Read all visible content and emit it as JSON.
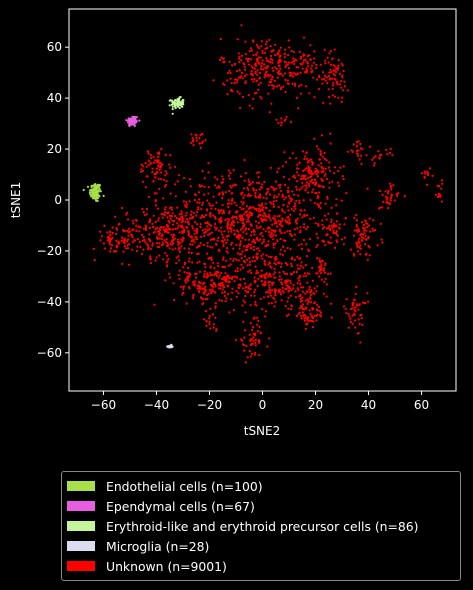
{
  "chart_data": {
    "type": "scatter",
    "title": "",
    "xlabel": "tSNE2",
    "ylabel": "tSNE1",
    "xlim": [
      -73,
      73
    ],
    "ylim": [
      -75,
      75
    ],
    "x_ticks": [
      -60,
      -40,
      -20,
      0,
      20,
      40,
      60
    ],
    "y_ticks": [
      -60,
      -40,
      -20,
      0,
      20,
      40,
      60
    ],
    "grid": false,
    "legend_position": "below",
    "background": "#000000",
    "series": [
      {
        "name": "Endothelial cells (n=100)",
        "color": "#a8e04a",
        "n": 100,
        "clusters": [
          [
            -63,
            3,
            2.0,
            3.5
          ]
        ]
      },
      {
        "name": "Ependymal cells (n=67)",
        "color": "#e85ee0",
        "n": 67,
        "clusters": [
          [
            -49,
            31,
            2.0,
            2.0
          ]
        ]
      },
      {
        "name": "Erythroid-like and erythroid precursor cells (n=86)",
        "color": "#c4f59a",
        "n": 86,
        "clusters": [
          [
            -32,
            38,
            2.2,
            1.8
          ]
        ]
      },
      {
        "name": "Microglia (n=28)",
        "color": "#dcdcf0",
        "n": 28,
        "clusters": [
          [
            -35,
            -57.5,
            0.8,
            0.5
          ]
        ]
      },
      {
        "name": "Unknown (n=9001)",
        "color": "#ff0000",
        "n": 9001,
        "clusters": [
          [
            -5,
            -8,
            27,
            17
          ],
          [
            -35,
            -12,
            16,
            10
          ],
          [
            -55,
            -16,
            8,
            5
          ],
          [
            -18,
            -32,
            14,
            9
          ],
          [
            5,
            -32,
            13,
            10
          ],
          [
            2,
            52,
            16,
            11
          ],
          [
            27,
            48,
            5,
            8
          ],
          [
            18,
            53,
            4,
            4
          ],
          [
            8,
            31,
            3,
            2
          ],
          [
            -40,
            13,
            6,
            7
          ],
          [
            -24,
            24,
            3,
            4
          ],
          [
            19,
            10,
            9,
            10
          ],
          [
            36,
            20,
            3,
            3
          ],
          [
            44,
            17,
            4,
            3
          ],
          [
            47,
            1,
            4,
            5
          ],
          [
            62,
            10,
            2.5,
            3
          ],
          [
            67,
            3,
            2,
            4
          ],
          [
            26,
            -12,
            4,
            6
          ],
          [
            38,
            -14,
            6,
            7
          ],
          [
            22,
            -27,
            3,
            6
          ],
          [
            18,
            -43,
            6,
            8
          ],
          [
            35,
            -44,
            4,
            7
          ],
          [
            -4,
            -55,
            5,
            6
          ],
          [
            -20,
            -48,
            3,
            3
          ],
          [
            -22,
            -36,
            3,
            3
          ]
        ]
      }
    ]
  },
  "legend": {
    "items": [
      {
        "label": "Endothelial cells (n=100)",
        "color": "#a8e04a"
      },
      {
        "label": "Ependymal cells (n=67)",
        "color": "#e85ee0"
      },
      {
        "label": "Erythroid-like and erythroid precursor cells (n=86)",
        "color": "#c4f59a"
      },
      {
        "label": "Microglia (n=28)",
        "color": "#dcdcf0"
      },
      {
        "label": "Unknown (n=9001)",
        "color": "#ff0000"
      }
    ]
  }
}
